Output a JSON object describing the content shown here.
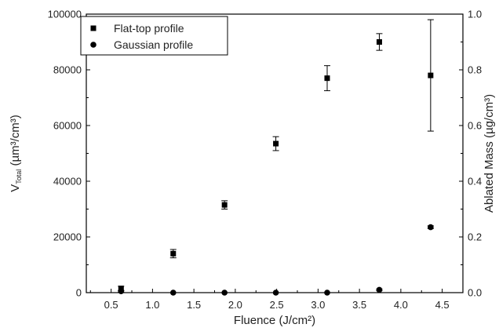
{
  "chart_data": {
    "type": "scatter",
    "xlabel": "Fluence (J/cm²)",
    "ylabel_left_main": "V",
    "ylabel_left_sub": "Total",
    "ylabel_left_unit": " (µm³/cm³)",
    "ylabel_right": "Ablated Mass (µg/cm³)",
    "xlim": [
      0.2,
      4.75
    ],
    "xticks": [
      "0.5",
      "1.0",
      "1.5",
      "2.0",
      "2.5",
      "3.0",
      "3.5",
      "4.0",
      "4.5"
    ],
    "ylim_left": [
      0,
      100000
    ],
    "yticks_left": [
      "0",
      "20000",
      "40000",
      "60000",
      "80000",
      "100000"
    ],
    "ylim_right": [
      0,
      1.0
    ],
    "yticks_right": [
      "0.0",
      "0.2",
      "0.4",
      "0.6",
      "0.8",
      "1.0"
    ],
    "legend_position": "top-left",
    "series": [
      {
        "name": "Flat-top profile",
        "marker": "square",
        "axis": "left",
        "x": [
          0.62,
          1.25,
          1.87,
          2.49,
          3.11,
          3.74,
          4.36
        ],
        "y": [
          1500,
          14000,
          31500,
          53500,
          77000,
          90000,
          78000
        ],
        "err": [
          800,
          1500,
          1500,
          2500,
          4500,
          3000,
          20000
        ]
      },
      {
        "name": "Gaussian profile",
        "marker": "circle",
        "axis": "right",
        "x": [
          0.62,
          1.25,
          1.87,
          2.49,
          3.11,
          3.74,
          4.36
        ],
        "y": [
          0.005,
          0.0,
          0.0,
          0.0,
          0.0,
          0.01,
          0.235
        ],
        "err": [
          0.003,
          0,
          0,
          0,
          0,
          0.003,
          0.005
        ]
      }
    ]
  }
}
